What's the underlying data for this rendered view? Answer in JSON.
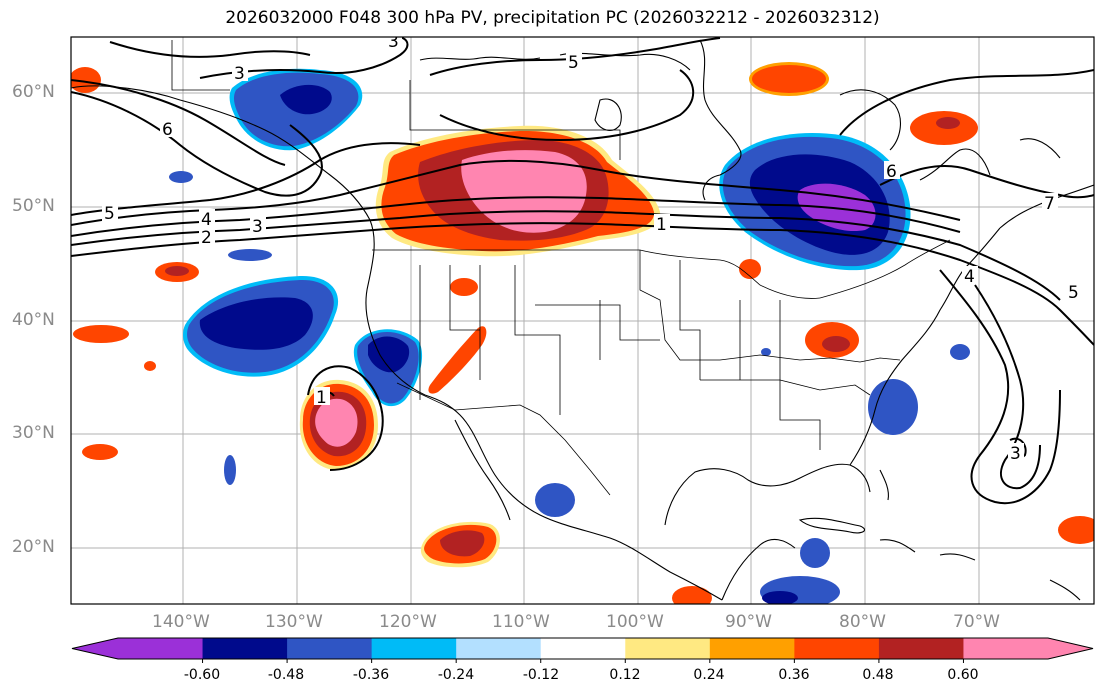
{
  "title": "2026032000 F048 300 hPa PV, precipitation PC (2026032212 - 2026032312)",
  "lat_labels": [
    "60°N",
    "50°N",
    "40°N",
    "30°N",
    "20°N"
  ],
  "lon_labels": [
    "140°W",
    "130°W",
    "120°W",
    "110°W",
    "100°W",
    "90°W",
    "80°W",
    "70°W"
  ],
  "contour_labels": [
    "3",
    "6",
    "5",
    "4",
    "3",
    "2",
    "5",
    "1",
    "6",
    "7",
    "4",
    "5",
    "3",
    "1",
    "3"
  ],
  "colorbar": {
    "ticks": [
      "-0.60",
      "-0.48",
      "-0.36",
      "-0.24",
      "-0.12",
      "0.12",
      "0.24",
      "0.36",
      "0.48",
      "0.60"
    ],
    "colors": [
      "#9b30d8",
      "#000a8c",
      "#2f55c4",
      "#00bbf7",
      "#b3e0ff",
      "#ffffff",
      "#ffe982",
      "#ffa000",
      "#ff4500",
      "#b22222",
      "#ff85b0"
    ]
  },
  "palette": {
    "deep_purple": "#9b30d8",
    "navy": "#000a8c",
    "blue": "#2f55c4",
    "cyan": "#00bbf7",
    "light_blue": "#b3e0ff",
    "yellow": "#ffe982",
    "orange": "#ffa000",
    "red_orange": "#ff4500",
    "dark_red": "#b22222",
    "pink": "#ff85b0"
  }
}
